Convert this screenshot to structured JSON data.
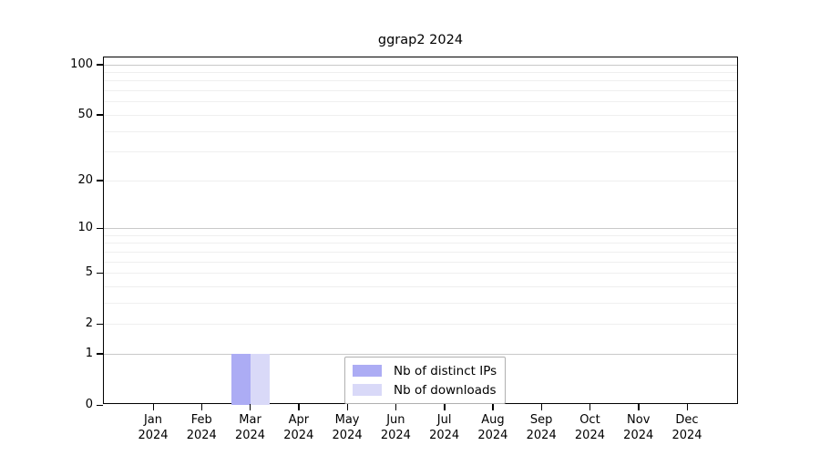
{
  "chart_data": {
    "type": "bar",
    "title": "ggrap2 2024",
    "xlabel": "",
    "ylabel": "",
    "categories": [
      "Jan 2024",
      "Feb 2024",
      "Mar 2024",
      "Apr 2024",
      "May 2024",
      "Jun 2024",
      "Jul 2024",
      "Aug 2024",
      "Sep 2024",
      "Oct 2024",
      "Nov 2024",
      "Dec 2024"
    ],
    "series": [
      {
        "name": "Nb of distinct IPs",
        "color": "#acacf4",
        "values": [
          0,
          0,
          1,
          0,
          0,
          0,
          0,
          0,
          0,
          0,
          0,
          0
        ]
      },
      {
        "name": "Nb of downloads",
        "color": "#d9d9f8",
        "values": [
          0,
          0,
          1,
          0,
          0,
          0,
          0,
          0,
          0,
          0,
          0,
          0
        ]
      }
    ],
    "yscale": "log1p",
    "ylim": [
      0,
      110
    ],
    "ytick_values": [
      0,
      1,
      2,
      5,
      10,
      20,
      50,
      100
    ],
    "major_gridlines": [
      1,
      10,
      100
    ],
    "minor_gridlines": [
      2,
      3,
      4,
      5,
      6,
      7,
      8,
      9,
      20,
      30,
      40,
      50,
      60,
      70,
      80,
      90
    ],
    "grid": true,
    "legend_position": "bottom-center"
  },
  "colors": {
    "axis": "#000000",
    "major_grid": "#c9c9c9",
    "minor_grid": "#efefef",
    "legend_border": "#b0b0b0",
    "background": "#ffffff"
  }
}
